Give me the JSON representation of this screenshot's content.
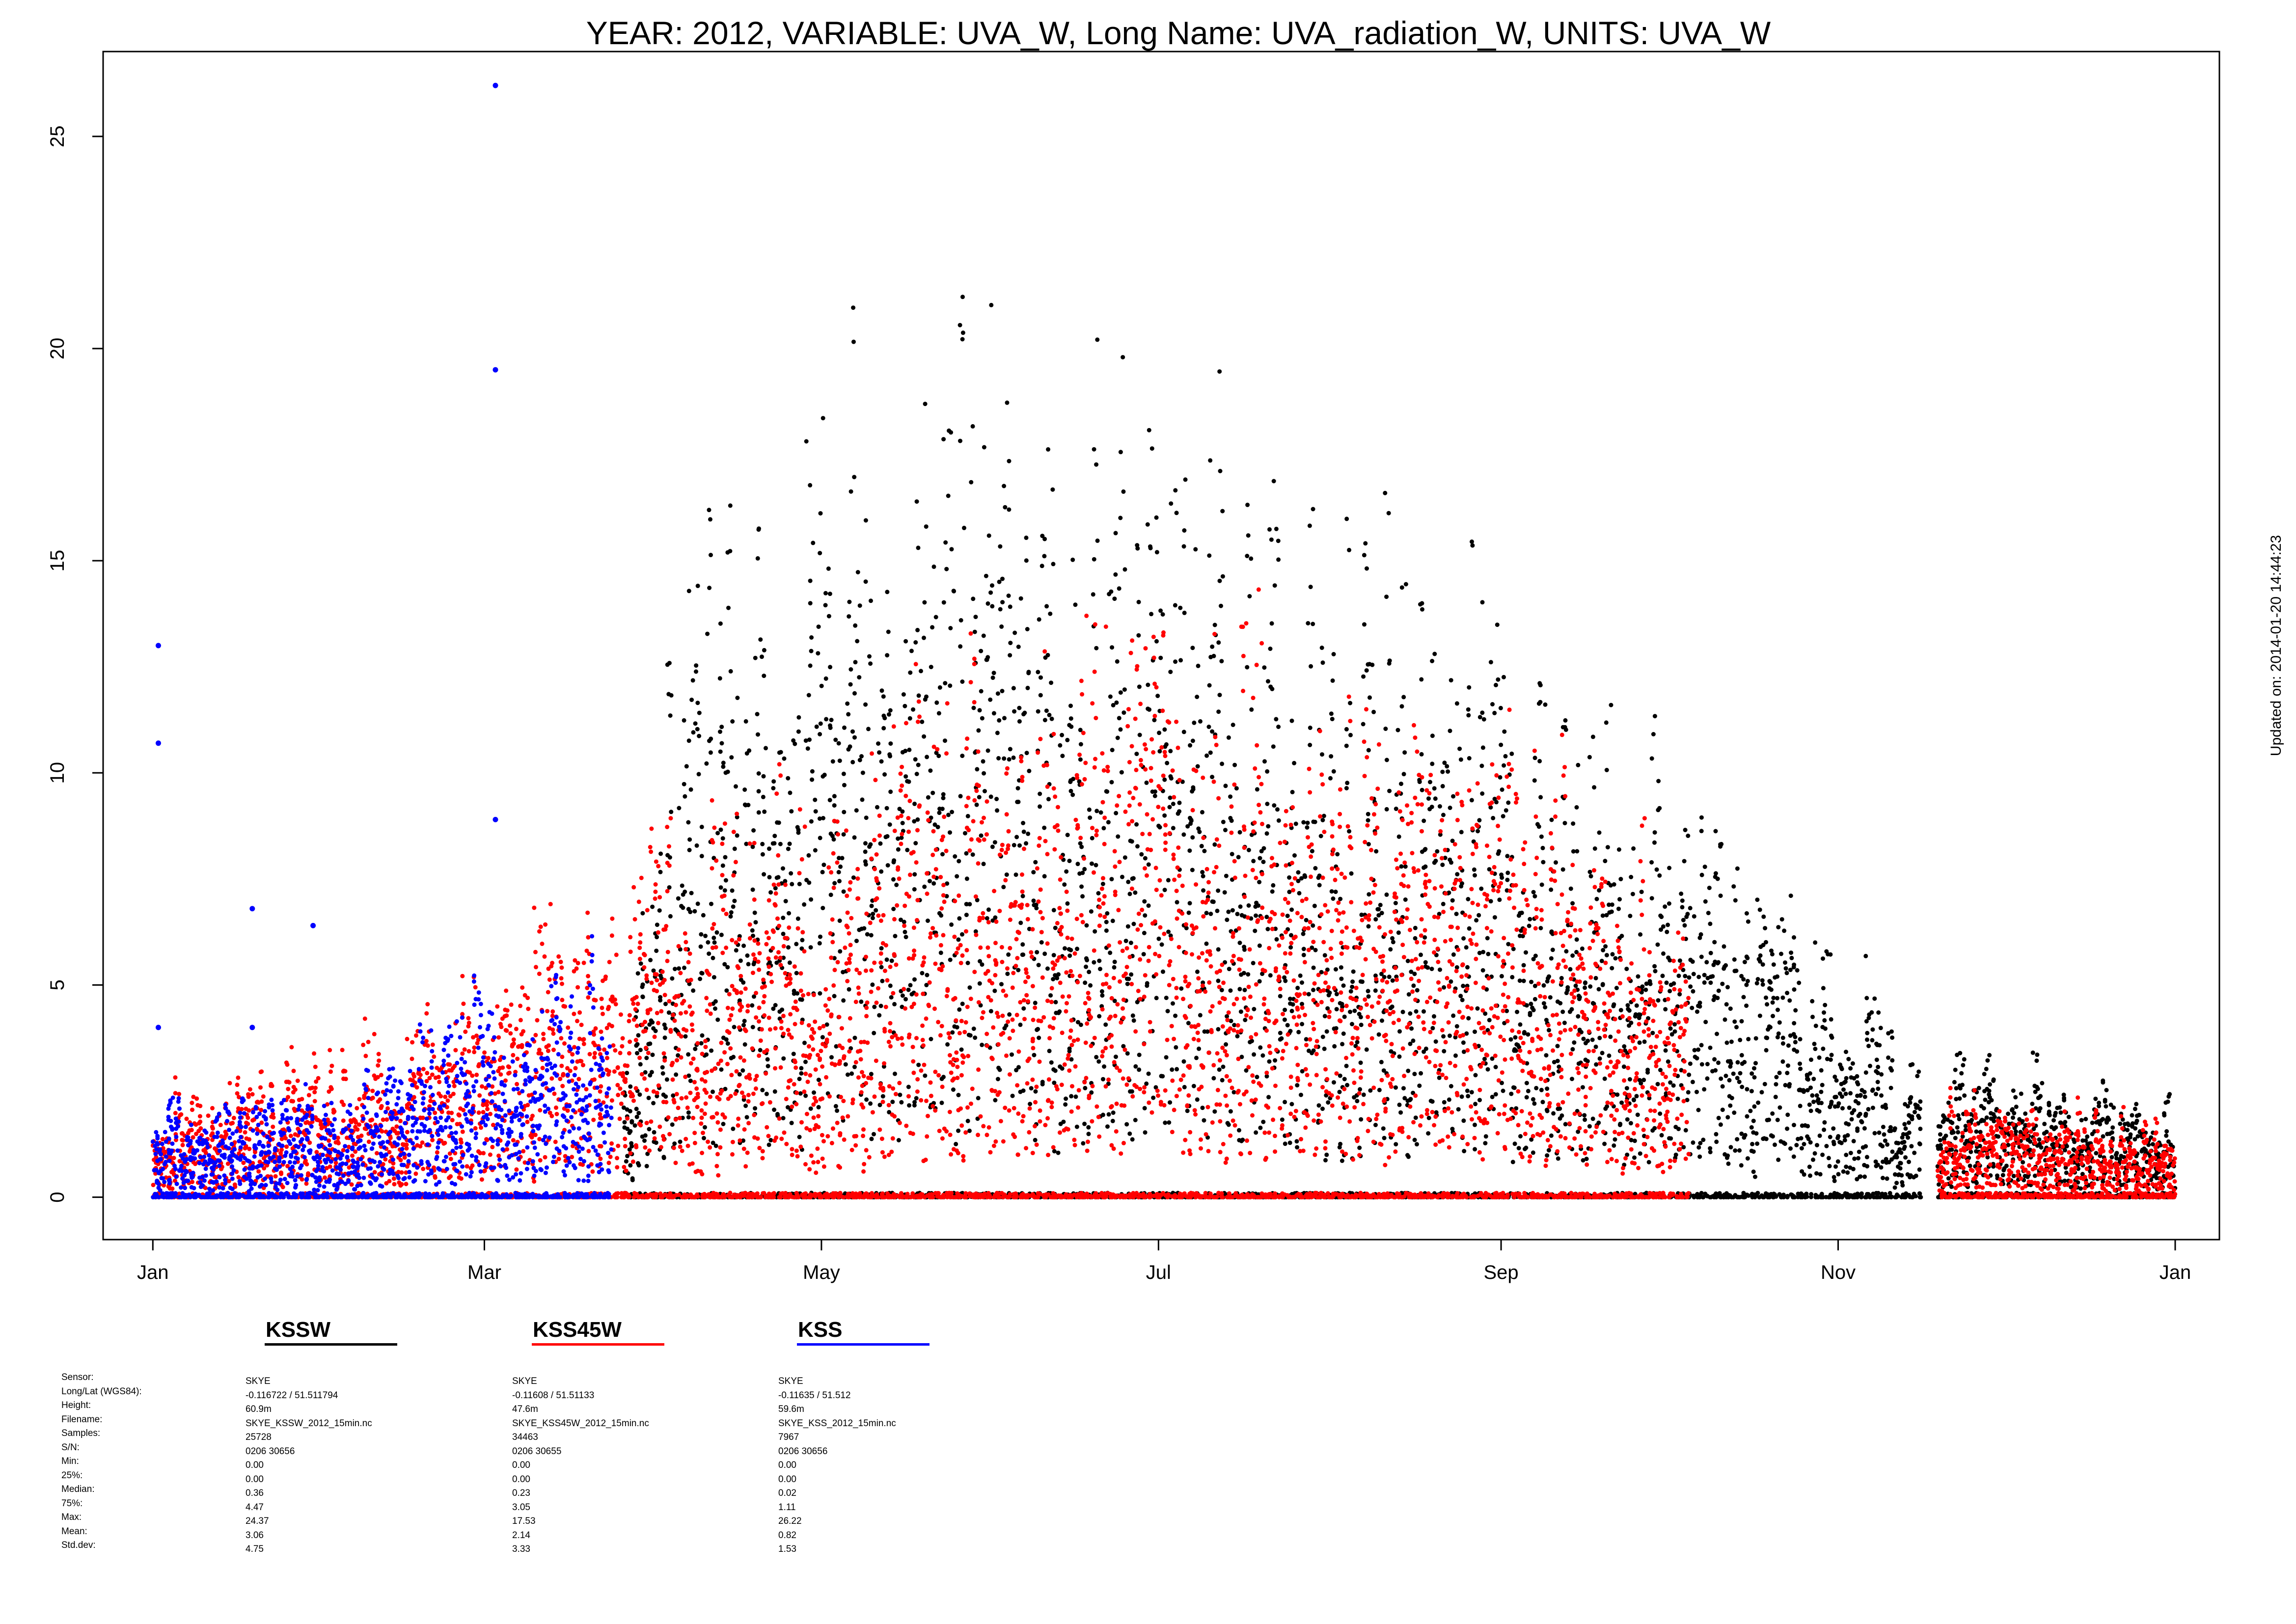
{
  "chart_data": {
    "type": "scatter",
    "title": "YEAR: 2012, VARIABLE: UVA_W, Long Name: UVA_radiation_W, UNITS: UVA_W",
    "xlabel": "",
    "ylabel": "",
    "updated": "Updated on: 2014-01-20 14:44:23",
    "x_type": "date",
    "xlim": [
      "2011-12-23",
      "2013-01-09"
    ],
    "ylim": [
      -1,
      27
    ],
    "y_ticks": [
      0,
      5,
      10,
      15,
      20,
      25
    ],
    "x_ticks": [
      {
        "label": "Jan",
        "date": "2012-01-01"
      },
      {
        "label": "Mar",
        "date": "2012-03-01"
      },
      {
        "label": "May",
        "date": "2012-05-01"
      },
      {
        "label": "Jul",
        "date": "2012-07-01"
      },
      {
        "label": "Sep",
        "date": "2012-09-01"
      },
      {
        "label": "Nov",
        "date": "2012-11-01"
      },
      {
        "label": "Jan",
        "date": "2013-01-01"
      }
    ],
    "grid": false,
    "legend_placement": "below plot",
    "series": [
      {
        "name": "KSSW",
        "color": "#000000",
        "coverage": [
          [
            "2012-03-26",
            "2012-11-15"
          ],
          [
            "2012-11-19",
            "2012-12-31"
          ]
        ],
        "envelope": [
          [
            "2012-03-26",
            4
          ],
          [
            "2012-04-05",
            18
          ],
          [
            "2012-04-25",
            21
          ],
          [
            "2012-05-15",
            22
          ],
          [
            "2012-05-25",
            24
          ],
          [
            "2012-06-15",
            23
          ],
          [
            "2012-07-10",
            21
          ],
          [
            "2012-07-25",
            20
          ],
          [
            "2012-08-10",
            18
          ],
          [
            "2012-08-25",
            17
          ],
          [
            "2012-09-10",
            15
          ],
          [
            "2012-09-25",
            13
          ],
          [
            "2012-10-05",
            11
          ],
          [
            "2012-10-15",
            9
          ],
          [
            "2012-10-25",
            7
          ],
          [
            "2012-11-05",
            6
          ],
          [
            "2012-11-15",
            4
          ],
          [
            "2012-11-19",
            4
          ],
          [
            "2012-12-31",
            3
          ]
        ],
        "stats": {
          "Sensor": "SKYE",
          "Long/Lat (WGS84)": "-0.116722 / 51.511794",
          "Height": "60.9m",
          "Filename": "SKYE_KSSW_2012_15min.nc",
          "Samples": "25728",
          "S/N": "0206 30656",
          "Min": "0.00",
          "25%": "0.00",
          "Median": "0.36",
          "75%": "4.47",
          "Max": "24.37",
          "Mean": "3.06",
          "Std.dev": "4.75"
        }
      },
      {
        "name": "KSS45W",
        "color": "#ff0000",
        "coverage": [
          [
            "2012-01-01",
            "2012-10-04"
          ],
          [
            "2012-11-19",
            "2012-12-31"
          ]
        ],
        "envelope": [
          [
            "2012-01-01",
            3
          ],
          [
            "2012-02-01",
            4
          ],
          [
            "2012-03-01",
            6
          ],
          [
            "2012-03-20",
            9
          ],
          [
            "2012-04-01",
            10
          ],
          [
            "2012-05-01",
            12
          ],
          [
            "2012-05-25",
            15
          ],
          [
            "2012-06-25",
            16
          ],
          [
            "2012-07-25",
            15
          ],
          [
            "2012-08-25",
            13
          ],
          [
            "2012-09-20",
            11
          ],
          [
            "2012-10-04",
            8
          ],
          [
            "2012-11-19",
            3
          ],
          [
            "2012-12-31",
            2
          ]
        ],
        "stats": {
          "Sensor": "SKYE",
          "Long/Lat (WGS84)": "-0.11608 / 51.51133",
          "Height": "47.6m",
          "Filename": "SKYE_KSS45W_2012_15min.nc",
          "Samples": "34463",
          "S/N": "0206 30655",
          "Min": "0.00",
          "25%": "0.00",
          "Median": "0.23",
          "75%": "3.05",
          "Max": "17.53",
          "Mean": "2.14",
          "Std.dev": "3.33"
        }
      },
      {
        "name": "KSS",
        "color": "#0000ff",
        "coverage": [
          [
            "2012-01-01",
            "2012-03-23"
          ]
        ],
        "envelope": [
          [
            "2012-01-01",
            2.5
          ],
          [
            "2012-02-01",
            3
          ],
          [
            "2012-02-20",
            5
          ],
          [
            "2012-03-01",
            6
          ],
          [
            "2012-03-23",
            8
          ]
        ],
        "outliers": [
          [
            "2012-01-02",
            13.0
          ],
          [
            "2012-01-02",
            10.7
          ],
          [
            "2012-01-02",
            4.0
          ],
          [
            "2012-01-19",
            6.8
          ],
          [
            "2012-01-19",
            4.0
          ],
          [
            "2012-01-30",
            6.4
          ],
          [
            "2012-03-03",
            26.2
          ],
          [
            "2012-03-03",
            19.5
          ],
          [
            "2012-03-03",
            8.9
          ]
        ],
        "stats": {
          "Sensor": "SKYE",
          "Long/Lat (WGS84)": "-0.11635 / 51.512",
          "Height": "59.6m",
          "Filename": "SKYE_KSS_2012_15min.nc",
          "Samples": "7967",
          "S/N": "0206 30656",
          "Min": "0.00",
          "25%": "0.00",
          "Median": "0.02",
          "75%": "1.11",
          "Max": "26.22",
          "Mean": "0.82",
          "Std.dev": "1.53"
        }
      }
    ]
  },
  "legend": {
    "row_labels": [
      "Sensor:",
      "Long/Lat (WGS84):",
      "Height:",
      "Filename:",
      "Samples:",
      "S/N:",
      "Min:",
      "25%:",
      "Median:",
      "75%:",
      "Max:",
      "Mean:",
      "Std.dev:"
    ],
    "stat_keys": [
      "Sensor",
      "Long/Lat (WGS84)",
      "Height",
      "Filename",
      "Samples",
      "S/N",
      "Min",
      "25%",
      "Median",
      "75%",
      "Max",
      "Mean",
      "Std.dev"
    ]
  }
}
